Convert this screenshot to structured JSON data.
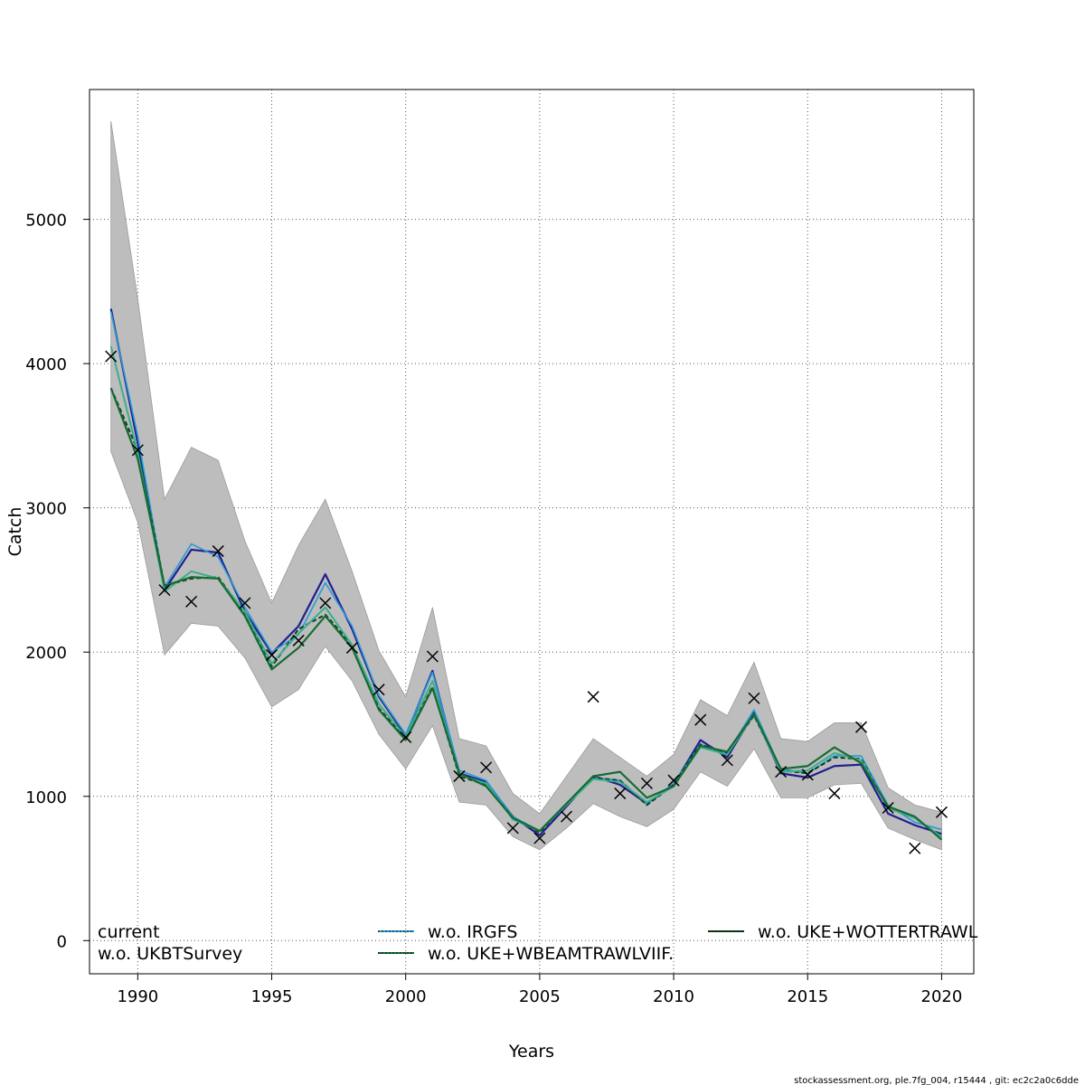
{
  "chart_data": {
    "type": "line",
    "xlabel": "Years",
    "ylabel": "Catch",
    "xlim": [
      1988.2,
      2021.2
    ],
    "ylim": [
      -230,
      5900
    ],
    "x_ticks": [
      1990,
      1995,
      2000,
      2005,
      2010,
      2015,
      2020
    ],
    "y_ticks": [
      0,
      1000,
      2000,
      3000,
      4000,
      5000
    ],
    "grid": true,
    "legend_position": "bottom",
    "x": [
      1989,
      1990,
      1991,
      1992,
      1993,
      1994,
      1995,
      1996,
      1997,
      1998,
      1999,
      2000,
      2001,
      2002,
      2003,
      2004,
      2005,
      2006,
      2007,
      2008,
      2009,
      2010,
      2011,
      2012,
      2013,
      2014,
      2015,
      2016,
      2017,
      2018,
      2019,
      2020
    ],
    "band": {
      "upper": [
        5680,
        4450,
        3060,
        3420,
        3330,
        2770,
        2340,
        2740,
        3060,
        2560,
        2010,
        1690,
        2310,
        1400,
        1350,
        1020,
        880,
        1140,
        1400,
        1270,
        1140,
        1290,
        1670,
        1560,
        1930,
        1400,
        1380,
        1510,
        1510,
        1060,
        940,
        890
      ],
      "lower": [
        3390,
        2900,
        1980,
        2200,
        2180,
        1960,
        1620,
        1740,
        2040,
        1800,
        1430,
        1190,
        1490,
        960,
        940,
        720,
        630,
        780,
        950,
        860,
        790,
        910,
        1170,
        1070,
        1330,
        990,
        990,
        1080,
        1090,
        780,
        700,
        630
      ]
    },
    "series": [
      {
        "name": "current",
        "color": "#1f1f8f",
        "width": 2.2,
        "dash": "",
        "values": [
          4380,
          3450,
          2430,
          2710,
          2690,
          2280,
          1990,
          2180,
          2540,
          2160,
          1690,
          1420,
          1870,
          1160,
          1100,
          860,
          730,
          930,
          1140,
          1080,
          950,
          1080,
          1390,
          1270,
          1580,
          1160,
          1130,
          1210,
          1220,
          880,
          800,
          740
        ]
      },
      {
        "name": "w.o. IRGFS",
        "color": "#2a9ad6",
        "width": 1.6,
        "dash": "",
        "values": [
          4360,
          3500,
          2450,
          2750,
          2660,
          2310,
          2000,
          2120,
          2480,
          2180,
          1700,
          1430,
          1860,
          1180,
          1110,
          860,
          760,
          940,
          1130,
          1110,
          950,
          1090,
          1360,
          1300,
          1600,
          1190,
          1160,
          1280,
          1280,
          940,
          820,
          770
        ]
      },
      {
        "name": "w.o. UKE+WOTTERTRAWL",
        "color": "#0b3d18",
        "width": 2.0,
        "dash": "5,3",
        "values": [
          3830,
          3400,
          2460,
          2510,
          2520,
          2270,
          1900,
          2160,
          2260,
          2050,
          1610,
          1400,
          1760,
          1140,
          1080,
          850,
          750,
          950,
          1130,
          1110,
          940,
          1080,
          1360,
          1300,
          1560,
          1180,
          1160,
          1270,
          1260,
          920,
          850,
          720
        ]
      },
      {
        "name": "w.o. UKBTSurvey",
        "color": "#3cae8c",
        "width": 2.0,
        "dash": "",
        "values": [
          4120,
          3380,
          2420,
          2560,
          2510,
          2280,
          1920,
          2130,
          2310,
          2050,
          1640,
          1410,
          1800,
          1150,
          1090,
          840,
          760,
          940,
          1120,
          1100,
          960,
          1070,
          1340,
          1290,
          1570,
          1170,
          1180,
          1300,
          1250,
          920,
          850,
          720
        ]
      },
      {
        "name": "w.o. UKE+WBEAMTRAWLVIIF.",
        "color": "#166b32",
        "width": 2.2,
        "dash": "",
        "values": [
          3830,
          3340,
          2460,
          2520,
          2510,
          2250,
          1880,
          2030,
          2250,
          2030,
          1600,
          1390,
          1750,
          1160,
          1070,
          850,
          760,
          950,
          1140,
          1170,
          990,
          1070,
          1350,
          1310,
          1570,
          1190,
          1210,
          1340,
          1230,
          930,
          860,
          700
        ]
      }
    ],
    "observed": {
      "x": [
        1989,
        1990,
        1991,
        1992,
        1993,
        1994,
        1995,
        1996,
        1997,
        1998,
        1999,
        2000,
        2001,
        2002,
        2003,
        2004,
        2005,
        2006,
        2007,
        2008,
        2009,
        2010,
        2011,
        2012,
        2013,
        2014,
        2015,
        2016,
        2017,
        2018,
        2019,
        2020
      ],
      "y": [
        4050,
        3400,
        2430,
        2350,
        2700,
        2340,
        1980,
        2080,
        2340,
        2030,
        1740,
        1410,
        1970,
        1140,
        1200,
        780,
        710,
        860,
        1690,
        1020,
        1090,
        1110,
        1530,
        1250,
        1680,
        1170,
        1150,
        1020,
        1480,
        920,
        640,
        890
      ]
    },
    "legend": [
      {
        "label": "current",
        "ref": "current",
        "line": false
      },
      {
        "label": "w.o. IRGFS",
        "ref": "w.o. IRGFS",
        "line": true
      },
      {
        "label": "w.o. UKE+WOTTERTRAWL",
        "ref": "w.o. UKE+WOTTERTRAWL",
        "line": true
      },
      {
        "label": "w.o. UKBTSurvey",
        "ref": "w.o. UKBTSurvey",
        "line": false
      },
      {
        "label": "w.o. UKE+WBEAMTRAWLVIIF.",
        "ref": "w.o. UKE+WBEAMTRAWLVIIF.",
        "line": true
      }
    ]
  },
  "footer": "stockassessment.org, ple.7fg_004, r15444 , git: ec2c2a0c6dde"
}
